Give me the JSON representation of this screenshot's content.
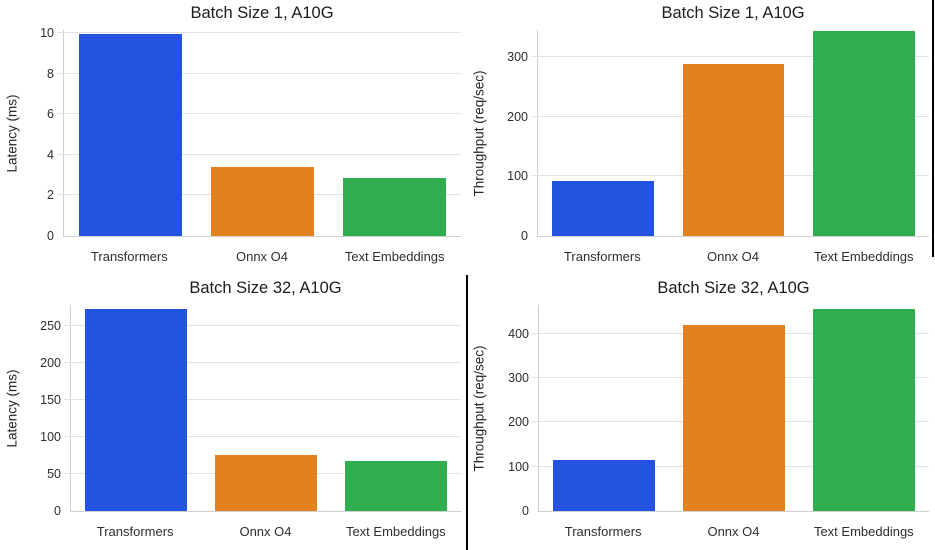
{
  "palette": {
    "bar_colors": [
      "#2452E1",
      "#E2821E",
      "#2FAD4F"
    ],
    "grid_color": "#e2e2e2",
    "spine_color": "#cfcfcf",
    "text_color": "#262626",
    "divider_color": "#000000",
    "background": "#ffffff"
  },
  "categories": [
    "Transformers",
    "Onnx O4",
    "Text Embeddings"
  ],
  "chart_data": [
    {
      "id": "latency-batch1",
      "type": "bar",
      "title": "Batch Size 1, A10G",
      "xlabel": "",
      "ylabel": "Latency (ms)",
      "categories": [
        "Transformers",
        "Onnx O4",
        "Text Embeddings"
      ],
      "values": [
        9.95,
        3.4,
        2.85
      ],
      "yticks": [
        0,
        2,
        4,
        6,
        8,
        10
      ],
      "ylim": [
        0,
        10.15
      ],
      "grid": true,
      "legend": false
    },
    {
      "id": "throughput-batch1",
      "type": "bar",
      "title": "Batch Size 1, A10G",
      "xlabel": "",
      "ylabel": "Throughput (req/sec)",
      "categories": [
        "Transformers",
        "Onnx O4",
        "Text Embeddings"
      ],
      "values": [
        93,
        289,
        344
      ],
      "yticks": [
        0,
        100,
        200,
        300
      ],
      "ylim": [
        0,
        346
      ],
      "grid": true,
      "legend": false
    },
    {
      "id": "latency-batch32",
      "type": "bar",
      "title": "Batch Size 32, A10G",
      "xlabel": "",
      "ylabel": "Latency (ms)",
      "categories": [
        "Transformers",
        "Onnx O4",
        "Text Embeddings"
      ],
      "values": [
        273,
        76,
        68
      ],
      "yticks": [
        0,
        50,
        100,
        150,
        200,
        250
      ],
      "ylim": [
        0,
        278
      ],
      "grid": true,
      "legend": false
    },
    {
      "id": "throughput-batch32",
      "type": "bar",
      "title": "Batch Size 32, A10G",
      "xlabel": "",
      "ylabel": "Throughput (req/sec)",
      "categories": [
        "Transformers",
        "Onnx O4",
        "Text Embeddings"
      ],
      "values": [
        116,
        421,
        457
      ],
      "yticks": [
        0,
        100,
        200,
        300,
        400
      ],
      "ylim": [
        0,
        465
      ],
      "grid": true,
      "legend": false
    }
  ]
}
